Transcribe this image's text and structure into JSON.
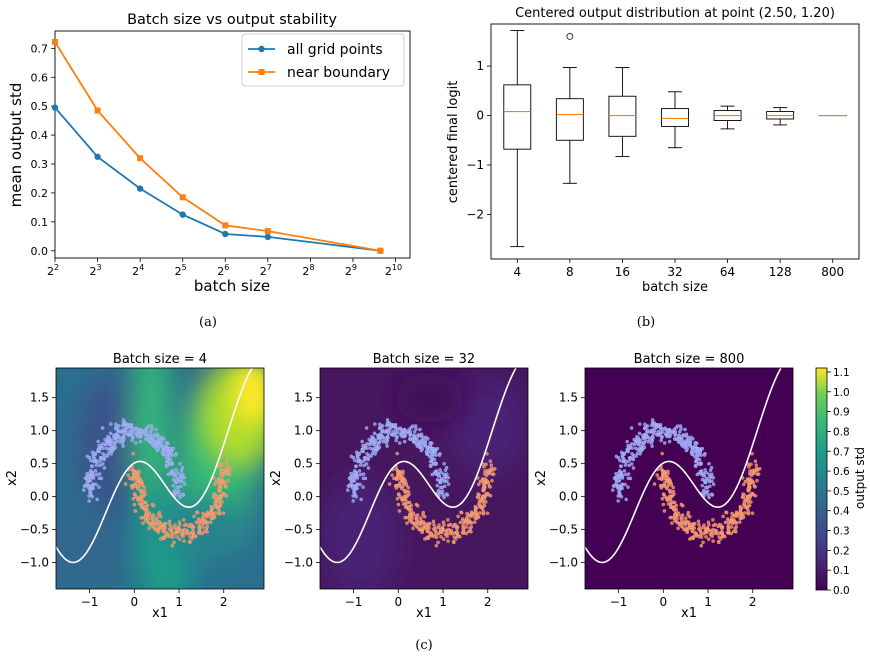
{
  "captions": {
    "a": "(a)",
    "b": "(b)",
    "c": "(c)"
  },
  "chart_data": [
    {
      "type": "line",
      "title": "Batch size vs output stability",
      "xlabel": "batch size",
      "ylabel": "mean output std",
      "x_scale": "log2",
      "x": [
        4,
        8,
        16,
        32,
        64,
        128,
        800
      ],
      "xticks": [
        {
          "base": "2",
          "exp": "2"
        },
        {
          "base": "2",
          "exp": "3"
        },
        {
          "base": "2",
          "exp": "4"
        },
        {
          "base": "2",
          "exp": "5"
        },
        {
          "base": "2",
          "exp": "6"
        },
        {
          "base": "2",
          "exp": "7"
        },
        {
          "base": "2",
          "exp": "8"
        },
        {
          "base": "2",
          "exp": "9"
        },
        {
          "base": "2",
          "exp": "10"
        }
      ],
      "yticks": [
        "0.0",
        "0.1",
        "0.2",
        "0.3",
        "0.4",
        "0.5",
        "0.6",
        "0.7"
      ],
      "ylim": [
        -0.025,
        0.76
      ],
      "legend_position": "top-right",
      "series": [
        {
          "name": "all grid points",
          "color": "#1f77b4",
          "marker": "circle",
          "values": [
            0.495,
            0.325,
            0.215,
            0.125,
            0.058,
            0.048,
            0.0
          ]
        },
        {
          "name": "near boundary",
          "color": "#ff7f0e",
          "marker": "square",
          "values": [
            0.722,
            0.485,
            0.32,
            0.185,
            0.088,
            0.068,
            0.0
          ]
        }
      ]
    },
    {
      "type": "box",
      "title": "Centered output distribution at point (2.50, 1.20)",
      "xlabel": "batch size",
      "ylabel": "centered final logit",
      "categories": [
        "4",
        "8",
        "16",
        "32",
        "64",
        "128",
        "800"
      ],
      "yticks": [
        "−2",
        "−1",
        "0",
        "1"
      ],
      "ylim": [
        -2.9,
        1.85
      ],
      "median_color": "#ff7f0e",
      "boxes": [
        {
          "whislo": -2.65,
          "q1": -0.68,
          "med": 0.08,
          "q3": 0.62,
          "whishi": 1.72,
          "fliers": []
        },
        {
          "whislo": -1.37,
          "q1": -0.5,
          "med": 0.02,
          "q3": 0.34,
          "whishi": 0.97,
          "fliers": [
            1.6
          ]
        },
        {
          "whislo": -0.83,
          "q1": -0.42,
          "med": 0.0,
          "q3": 0.39,
          "whishi": 0.97,
          "fliers": []
        },
        {
          "whislo": -0.65,
          "q1": -0.22,
          "med": -0.06,
          "q3": 0.14,
          "whishi": 0.48,
          "fliers": []
        },
        {
          "whislo": -0.27,
          "q1": -0.1,
          "med": 0.0,
          "q3": 0.1,
          "whishi": 0.19,
          "fliers": []
        },
        {
          "whislo": -0.19,
          "q1": -0.07,
          "med": 0.0,
          "q3": 0.08,
          "whishi": 0.16,
          "fliers": []
        },
        {
          "whislo": 0.0,
          "q1": 0.0,
          "med": 0.0,
          "q3": 0.0,
          "whishi": 0.0,
          "fliers": []
        }
      ]
    },
    {
      "type": "heatmap",
      "title": "Batch size = 4",
      "xlabel": "x1",
      "ylabel": "x2",
      "xlim": [
        -1.75,
        2.9
      ],
      "ylim": [
        -1.4,
        1.95
      ],
      "xticks": [
        "−1",
        "0",
        "1",
        "2"
      ],
      "yticks": [
        "−1.0",
        "−0.5",
        "0.0",
        "0.5",
        "1.0",
        "1.5"
      ],
      "level": "high"
    },
    {
      "type": "heatmap",
      "title": "Batch size = 32",
      "xlabel": "x1",
      "ylabel": "x2",
      "xlim": [
        -1.75,
        2.9
      ],
      "ylim": [
        -1.4,
        1.95
      ],
      "xticks": [
        "−1",
        "0",
        "1",
        "2"
      ],
      "yticks": [
        "−1.0",
        "−0.5",
        "0.0",
        "0.5",
        "1.0",
        "1.5"
      ],
      "level": "low"
    },
    {
      "type": "heatmap",
      "title": "Batch size = 800",
      "xlabel": "x1",
      "ylabel": "x2",
      "xlim": [
        -1.75,
        2.9
      ],
      "ylim": [
        -1.4,
        1.95
      ],
      "xticks": [
        "−1",
        "0",
        "1",
        "2"
      ],
      "yticks": [
        "−1.0",
        "−0.5",
        "0.0",
        "0.5",
        "1.0",
        "1.5"
      ],
      "level": "zero"
    }
  ],
  "colorbar": {
    "label": "output std",
    "range": [
      0.0,
      1.12
    ],
    "ticks": [
      "0.0",
      "0.1",
      "0.2",
      "0.3",
      "0.4",
      "0.5",
      "0.6",
      "0.7",
      "0.8",
      "0.9",
      "1.0",
      "1.1"
    ]
  }
}
